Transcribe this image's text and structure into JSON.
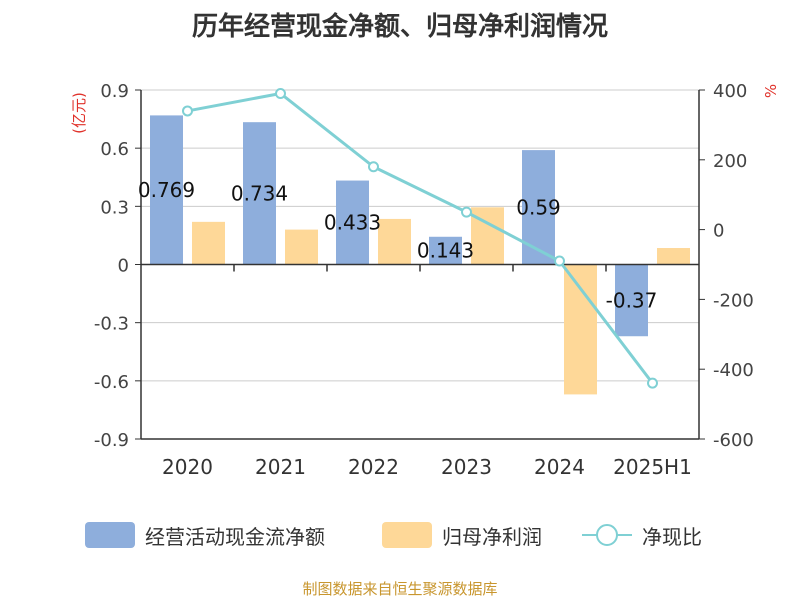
{
  "chart_data": {
    "type": "bar",
    "title": "历年经营现金净额、归母净利润情况",
    "categories": [
      "2020",
      "2021",
      "2022",
      "2023",
      "2024",
      "2025H1"
    ],
    "series": [
      {
        "name": "经营活动现金流净额",
        "axis": "left",
        "kind": "bar",
        "values": [
          0.769,
          0.734,
          0.433,
          0.143,
          0.59,
          -0.37
        ],
        "data_labels": [
          "0.769",
          "0.734",
          "0.433",
          "0.143",
          "0.59",
          "-0.37"
        ]
      },
      {
        "name": "归母净利润",
        "axis": "left",
        "kind": "bar",
        "values": [
          0.22,
          0.18,
          0.235,
          0.295,
          -0.67,
          0.085
        ]
      },
      {
        "name": "净现比",
        "axis": "right",
        "kind": "line",
        "values": [
          340,
          390,
          180,
          50,
          -90,
          -440
        ]
      }
    ],
    "y_left": {
      "unit": "(亿元)",
      "range": [
        -0.9,
        0.9
      ],
      "ticks": [
        "0.9",
        "0.6",
        "0.3",
        "0",
        "-0.3",
        "-0.6",
        "-0.9"
      ]
    },
    "y_right": {
      "unit": "%",
      "range": [
        -600,
        400
      ],
      "ticks": [
        "400",
        "200",
        "0",
        "-200",
        "-400",
        "-600"
      ]
    },
    "grid": true,
    "legend_position": "bottom",
    "colors": {
      "cash_flow": "#8eaedc",
      "net_profit": "#fed898",
      "ratio": "#7fd0d4"
    }
  },
  "legend": {
    "cash_flow": "经营活动现金流净额",
    "net_profit": "归母净利润",
    "ratio": "净现比"
  },
  "source_note": "制图数据来自恒生聚源数据库"
}
